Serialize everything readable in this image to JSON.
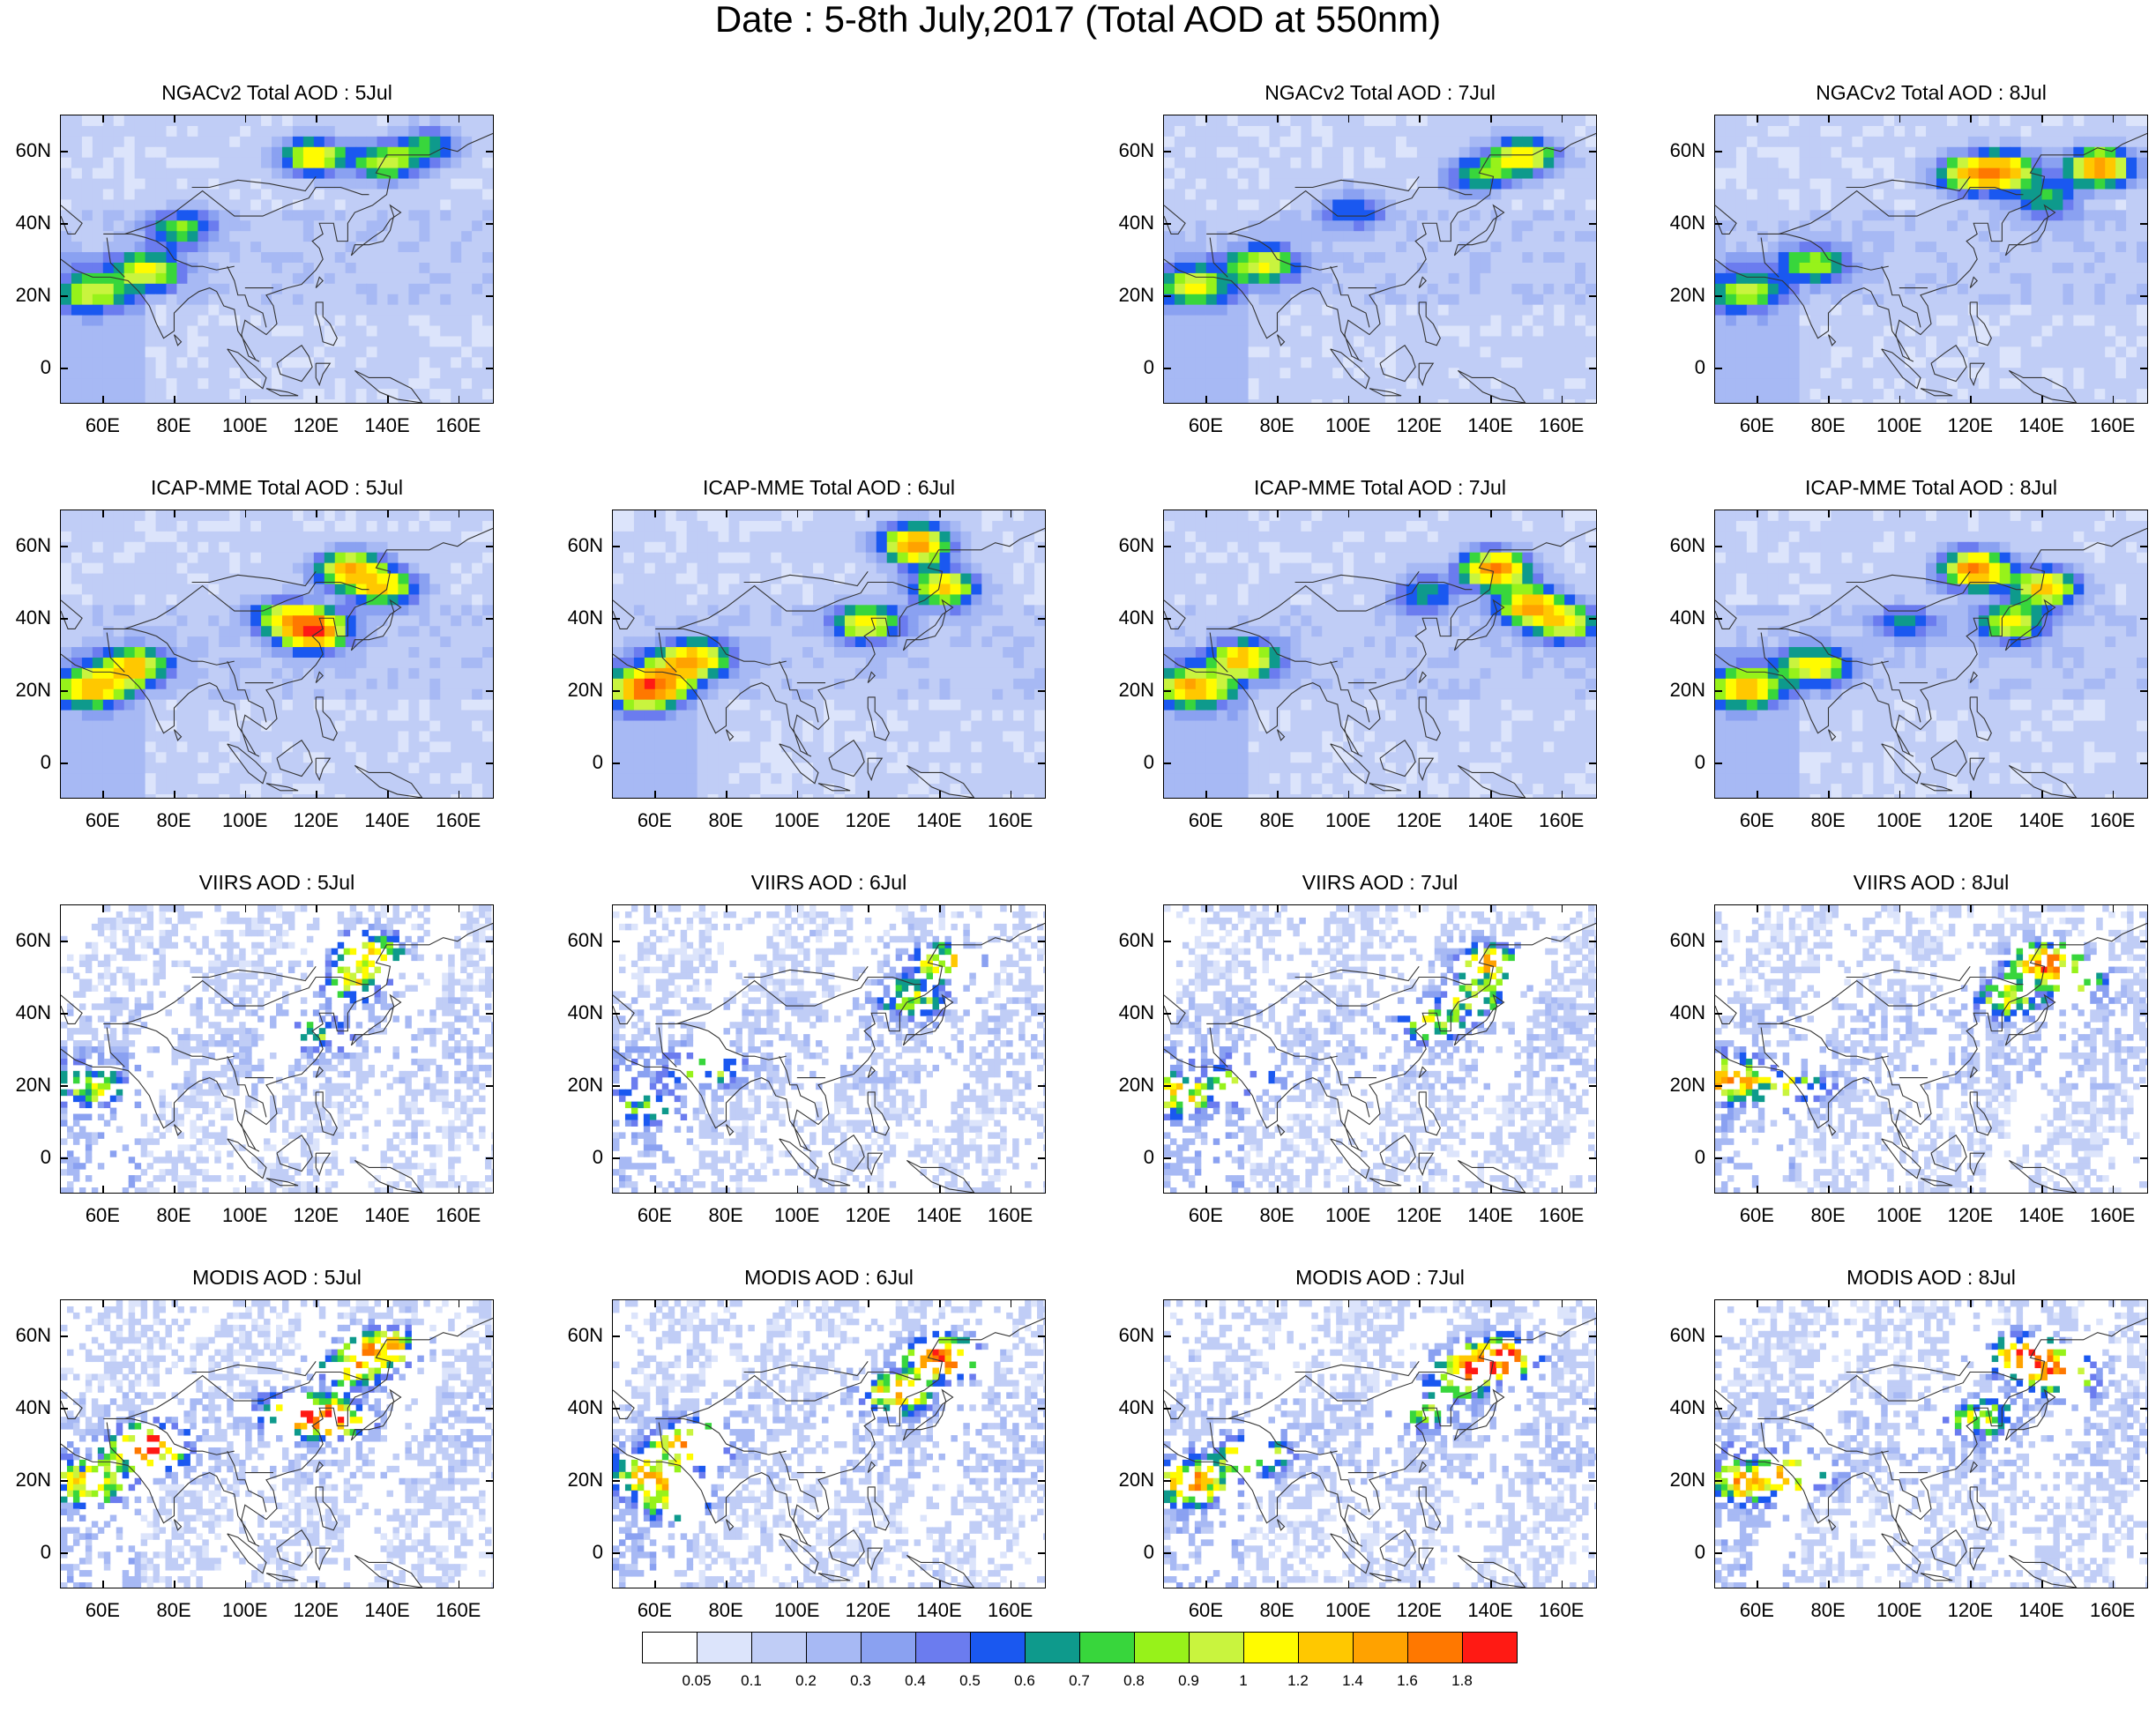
{
  "title": "Date : 5-8th July,2017 (Total AOD at 550nm)",
  "x_ticks": [
    "60E",
    "80E",
    "100E",
    "120E",
    "140E",
    "160E"
  ],
  "y_ticks": [
    "60N",
    "40N",
    "20N",
    "0"
  ],
  "map_extent": {
    "lon": [
      48,
      170
    ],
    "lat": [
      -10,
      70
    ]
  },
  "x_tick_values": [
    60,
    80,
    100,
    120,
    140,
    160
  ],
  "y_tick_values": [
    60,
    40,
    20,
    0
  ],
  "rows": [
    {
      "product": "NGACv2 Total AOD",
      "panels": [
        {
          "title": "NGACv2 Total AOD : 5Jul",
          "visible": true,
          "style": "model",
          "seed": 11,
          "plumes": [
            [
              72,
              28,
              0.9
            ],
            [
              55,
              22,
              0.75
            ],
            [
              118,
              60,
              1.0
            ],
            [
              138,
              58,
              0.8
            ],
            [
              80,
              40,
              0.65
            ],
            [
              150,
              63,
              0.6
            ]
          ]
        },
        {
          "title": "",
          "visible": false
        },
        {
          "title": "NGACv2 Total AOD : 7Jul",
          "visible": true,
          "style": "model",
          "seed": 13,
          "plumes": [
            [
              148,
              60,
              1.1
            ],
            [
              75,
              30,
              0.9
            ],
            [
              55,
              24,
              0.8
            ],
            [
              135,
              55,
              0.65
            ],
            [
              100,
              45,
              0.5
            ]
          ]
        },
        {
          "title": "NGACv2 Total AOD : 8Jul",
          "visible": true,
          "style": "model",
          "seed": 14,
          "plumes": [
            [
              155,
              57,
              1.4
            ],
            [
              128,
              56,
              1.2
            ],
            [
              118,
              55,
              1.0
            ],
            [
              55,
              22,
              0.7
            ],
            [
              75,
              30,
              0.75
            ],
            [
              140,
              48,
              0.6
            ]
          ]
        }
      ]
    },
    {
      "product": "ICAP-MME Total AOD",
      "panels": [
        {
          "title": "ICAP-MME Total AOD : 5Jul",
          "visible": true,
          "style": "model",
          "seed": 21,
          "plumes": [
            [
              118,
              38,
              1.6
            ],
            [
              128,
              55,
              1.2
            ],
            [
              138,
              50,
              1.0
            ],
            [
              68,
              28,
              1.0
            ],
            [
              55,
              22,
              1.1
            ],
            [
              110,
              42,
              0.8
            ]
          ]
        },
        {
          "title": "ICAP-MME Total AOD : 6Jul",
          "visible": true,
          "style": "model",
          "seed": 22,
          "plumes": [
            [
              132,
              62,
              1.5
            ],
            [
              140,
              50,
              1.1
            ],
            [
              118,
              40,
              1.0
            ],
            [
              70,
              30,
              1.2
            ],
            [
              55,
              21,
              1.1
            ],
            [
              60,
              24,
              0.8
            ]
          ]
        },
        {
          "title": "ICAP-MME Total AOD : 7Jul",
          "visible": true,
          "style": "model",
          "seed": 23,
          "plumes": [
            [
              140,
              55,
              1.5
            ],
            [
              150,
              45,
              1.2
            ],
            [
              160,
              40,
              0.9
            ],
            [
              70,
              30,
              1.1
            ],
            [
              55,
              22,
              1.2
            ],
            [
              120,
              48,
              0.6
            ]
          ]
        },
        {
          "title": "ICAP-MME Total AOD : 8Jul",
          "visible": true,
          "style": "model",
          "seed": 24,
          "plumes": [
            [
              120,
              55,
              1.5
            ],
            [
              140,
              50,
              1.2
            ],
            [
              130,
              40,
              0.9
            ],
            [
              75,
              28,
              1.0
            ],
            [
              55,
              22,
              1.1
            ],
            [
              100,
              40,
              0.5
            ]
          ]
        }
      ]
    },
    {
      "product": "VIIRS AOD",
      "panels": [
        {
          "title": "VIIRS AOD : 5Jul",
          "visible": true,
          "style": "sat",
          "seed": 31,
          "plumes": [
            [
              130,
              50,
              0.9
            ],
            [
              135,
              58,
              1.0
            ],
            [
              55,
              20,
              0.7
            ],
            [
              120,
              35,
              0.6
            ]
          ]
        },
        {
          "title": "VIIRS AOD : 6Jul",
          "visible": true,
          "style": "sat",
          "seed": 32,
          "plumes": [
            [
              140,
              55,
              1.1
            ],
            [
              132,
              45,
              0.8
            ],
            [
              75,
              25,
              0.6
            ],
            [
              55,
              15,
              0.5
            ]
          ]
        },
        {
          "title": "VIIRS AOD : 7Jul",
          "visible": true,
          "style": "sat",
          "seed": 33,
          "plumes": [
            [
              140,
              55,
              1.2
            ],
            [
              135,
              45,
              0.8
            ],
            [
              122,
              38,
              0.8
            ],
            [
              52,
              18,
              0.9
            ],
            [
              70,
              22,
              0.6
            ]
          ]
        },
        {
          "title": "VIIRS AOD : 8Jul",
          "visible": true,
          "style": "sat",
          "seed": 34,
          "plumes": [
            [
              140,
              55,
              1.4
            ],
            [
              130,
              45,
              0.9
            ],
            [
              52,
              22,
              1.2
            ],
            [
              70,
              20,
              0.6
            ],
            [
              150,
              50,
              0.7
            ]
          ]
        }
      ]
    },
    {
      "product": "MODIS AOD",
      "panels": [
        {
          "title": "MODIS AOD : 5Jul",
          "visible": true,
          "style": "sat",
          "seed": 41,
          "plumes": [
            [
              72,
              30,
              1.8
            ],
            [
              122,
              38,
              1.8
            ],
            [
              130,
              52,
              1.1
            ],
            [
              55,
              20,
              1.0
            ],
            [
              138,
              58,
              1.2
            ],
            [
              110,
              40,
              0.6
            ]
          ]
        },
        {
          "title": "MODIS AOD : 6Jul",
          "visible": true,
          "style": "sat",
          "seed": 42,
          "plumes": [
            [
              140,
              55,
              1.7
            ],
            [
              128,
              45,
              1.3
            ],
            [
              70,
              31,
              1.5
            ],
            [
              58,
              22,
              1.0
            ],
            [
              65,
              15,
              0.8
            ]
          ]
        },
        {
          "title": "MODIS AOD : 7Jul",
          "visible": true,
          "style": "sat",
          "seed": 43,
          "plumes": [
            [
              142,
              55,
              1.8
            ],
            [
              132,
              50,
              1.3
            ],
            [
              55,
              20,
              1.3
            ],
            [
              72,
              28,
              1.1
            ],
            [
              120,
              40,
              0.7
            ]
          ]
        },
        {
          "title": "MODIS AOD : 8Jul",
          "visible": true,
          "style": "sat",
          "seed": 44,
          "plumes": [
            [
              135,
              55,
              1.7
            ],
            [
              145,
              50,
              1.3
            ],
            [
              55,
              20,
              1.0
            ],
            [
              70,
              22,
              1.0
            ],
            [
              122,
              38,
              0.8
            ]
          ]
        }
      ]
    }
  ],
  "colorbar": {
    "labels": [
      "0.05",
      "0.1",
      "0.2",
      "0.3",
      "0.4",
      "0.5",
      "0.6",
      "0.7",
      "0.8",
      "0.9",
      "1",
      "1.2",
      "1.4",
      "1.6",
      "1.8"
    ],
    "levels": [
      0.05,
      0.1,
      0.2,
      0.3,
      0.4,
      0.5,
      0.6,
      0.7,
      0.8,
      0.9,
      1.0,
      1.2,
      1.4,
      1.6,
      1.8
    ],
    "colors": [
      "#ffffff",
      "#dce4fb",
      "#c0cdf6",
      "#a7b9f4",
      "#8aa1f1",
      "#6b7cef",
      "#1a58f0",
      "#0e9a8c",
      "#38d63c",
      "#97f21a",
      "#c9f43e",
      "#fffb00",
      "#ffc800",
      "#ffa200",
      "#ff7800",
      "#ff1a14"
    ]
  }
}
